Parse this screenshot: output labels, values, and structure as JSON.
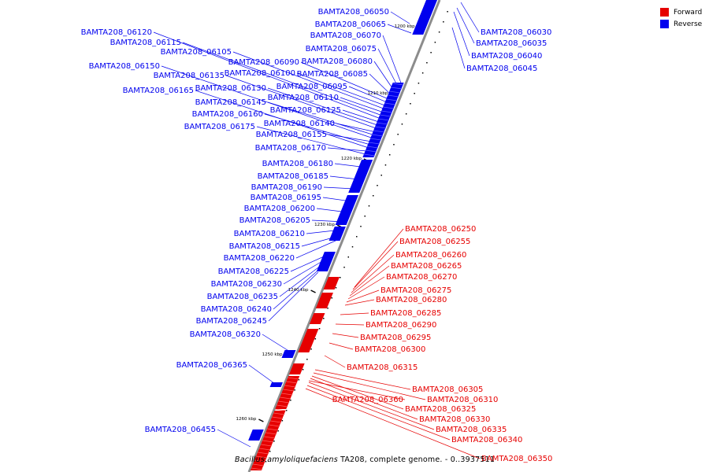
{
  "map": {
    "genome_species": "Bacillus amyloliquefaciens",
    "genome_rest": " TA208, complete genome. - 0..3937511",
    "colors": {
      "forward": "#e60000",
      "reverse": "#0000ee",
      "axis": "#8c8c8c",
      "ticks": "#000000"
    },
    "scale_marks": [
      {
        "label": "1200 kbp"
      },
      {
        "label": "1210 kbp"
      },
      {
        "label": "1220 kbp"
      },
      {
        "label": "1230 kbp"
      },
      {
        "label": "1240 kbp"
      },
      {
        "label": "1250 kbp"
      },
      {
        "label": "1260 kbp"
      }
    ]
  },
  "legend": {
    "items": [
      {
        "label": "Forward",
        "color": "#e60000"
      },
      {
        "label": "Reverse",
        "color": "#0000ee"
      }
    ]
  },
  "genes": {
    "reverse": [
      "BAMTA208_06030",
      "BAMTA208_06035",
      "BAMTA208_06040",
      "BAMTA208_06045",
      "BAMTA208_06050",
      "BAMTA208_06065",
      "BAMTA208_06070",
      "BAMTA208_06075",
      "BAMTA208_06080",
      "BAMTA208_06085",
      "BAMTA208_06090",
      "BAMTA208_06095",
      "BAMTA208_06100",
      "BAMTA208_06105",
      "BAMTA208_06110",
      "BAMTA208_06115",
      "BAMTA208_06120",
      "BAMTA208_06125",
      "BAMTA208_06130",
      "BAMTA208_06135",
      "BAMTA208_06140",
      "BAMTA208_06145",
      "BAMTA208_06150",
      "BAMTA208_06155",
      "BAMTA208_06160",
      "BAMTA208_06165",
      "BAMTA208_06170",
      "BAMTA208_06175",
      "BAMTA208_06180",
      "BAMTA208_06185",
      "BAMTA208_06190",
      "BAMTA208_06195",
      "BAMTA208_06200",
      "BAMTA208_06205",
      "BAMTA208_06210",
      "BAMTA208_06215",
      "BAMTA208_06220",
      "BAMTA208_06225",
      "BAMTA208_06230",
      "BAMTA208_06235",
      "BAMTA208_06240",
      "BAMTA208_06245",
      "BAMTA208_06320",
      "BAMTA208_06365",
      "BAMTA208_06455"
    ],
    "forward": [
      "BAMTA208_06250",
      "BAMTA208_06255",
      "BAMTA208_06260",
      "BAMTA208_06265",
      "BAMTA208_06270",
      "BAMTA208_06275",
      "BAMTA208_06280",
      "BAMTA208_06285",
      "BAMTA208_06290",
      "BAMTA208_06295",
      "BAMTA208_06300",
      "BAMTA208_06315",
      "BAMTA208_06305",
      "BAMTA208_06310",
      "BAMTA208_06360",
      "BAMTA208_06325",
      "BAMTA208_06330",
      "BAMTA208_06335",
      "BAMTA208_06340",
      "BAMTA208_06350"
    ]
  }
}
